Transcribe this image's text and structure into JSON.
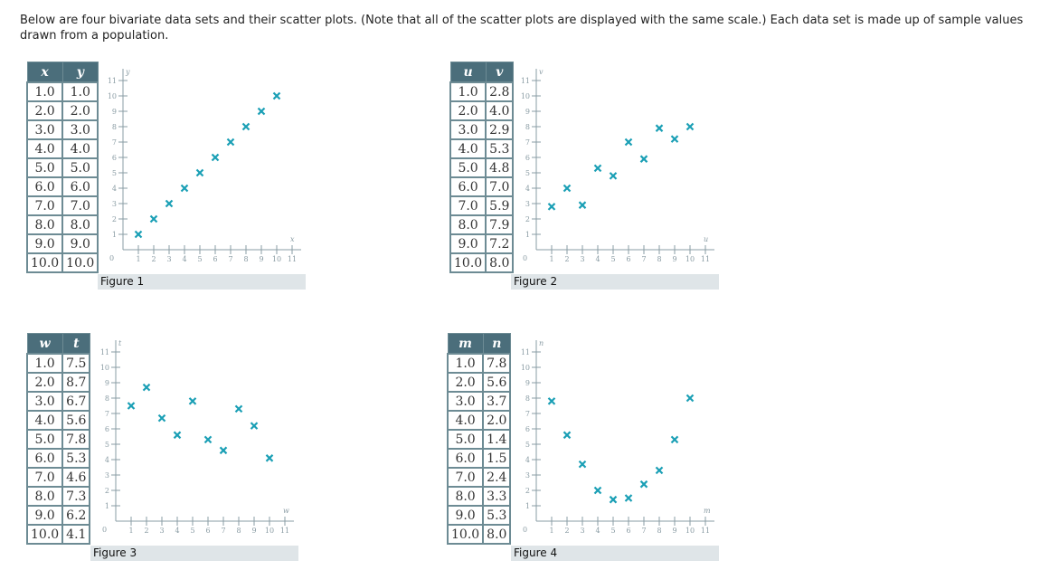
{
  "intro": "Below are four bivariate data sets and their scatter plots. (Note that all of the scatter plots are displayed with the same scale.) Each data set is made up of sample values drawn from a population.",
  "colors": {
    "marker": "#1a9fb5",
    "header": "#4b6e7b",
    "axis": "#8a9ca4",
    "caption_bg": "#dfe5e8"
  },
  "marker_icon": "x-cross",
  "chart_data": [
    {
      "type": "scatter",
      "caption": "Figure 1",
      "xlabel": "x",
      "ylabel": "y",
      "xlim": [
        0,
        11
      ],
      "ylim": [
        0,
        11
      ],
      "origin_label": "0",
      "x_ticks": [
        "1",
        "2",
        "3",
        "4",
        "5",
        "6",
        "7",
        "8",
        "9",
        "10",
        "11"
      ],
      "y_ticks": [
        "1",
        "2",
        "3",
        "4",
        "5",
        "6",
        "7",
        "8",
        "9",
        "10",
        "11"
      ],
      "x": [
        "1.0",
        "2.0",
        "3.0",
        "4.0",
        "5.0",
        "6.0",
        "7.0",
        "8.0",
        "9.0",
        "10.0"
      ],
      "y": [
        "1.0",
        "2.0",
        "3.0",
        "4.0",
        "5.0",
        "6.0",
        "7.0",
        "8.0",
        "9.0",
        "10.0"
      ]
    },
    {
      "type": "scatter",
      "caption": "Figure 2",
      "xlabel": "u",
      "ylabel": "v",
      "xlim": [
        0,
        11
      ],
      "ylim": [
        0,
        11
      ],
      "origin_label": "0",
      "x_ticks": [
        "1",
        "2",
        "3",
        "4",
        "5",
        "6",
        "7",
        "8",
        "9",
        "10",
        "11"
      ],
      "y_ticks": [
        "1",
        "2",
        "3",
        "4",
        "5",
        "6",
        "7",
        "8",
        "9",
        "10",
        "11"
      ],
      "x": [
        "1.0",
        "2.0",
        "3.0",
        "4.0",
        "5.0",
        "6.0",
        "7.0",
        "8.0",
        "9.0",
        "10.0"
      ],
      "y": [
        "2.8",
        "4.0",
        "2.9",
        "5.3",
        "4.8",
        "7.0",
        "5.9",
        "7.9",
        "7.2",
        "8.0"
      ]
    },
    {
      "type": "scatter",
      "caption": "Figure 3",
      "xlabel": "w",
      "ylabel": "t",
      "xlim": [
        0,
        11
      ],
      "ylim": [
        0,
        11
      ],
      "origin_label": "0",
      "x_ticks": [
        "1",
        "2",
        "3",
        "4",
        "5",
        "6",
        "7",
        "8",
        "9",
        "10",
        "11"
      ],
      "y_ticks": [
        "1",
        "2",
        "3",
        "4",
        "5",
        "6",
        "7",
        "8",
        "9",
        "10",
        "11"
      ],
      "x": [
        "1.0",
        "2.0",
        "3.0",
        "4.0",
        "5.0",
        "6.0",
        "7.0",
        "8.0",
        "9.0",
        "10.0"
      ],
      "y": [
        "7.5",
        "8.7",
        "6.7",
        "5.6",
        "7.8",
        "5.3",
        "4.6",
        "7.3",
        "6.2",
        "4.1"
      ]
    },
    {
      "type": "scatter",
      "caption": "Figure 4",
      "xlabel": "m",
      "ylabel": "n",
      "xlim": [
        0,
        11
      ],
      "ylim": [
        0,
        11
      ],
      "origin_label": "0",
      "x_ticks": [
        "1",
        "2",
        "3",
        "4",
        "5",
        "6",
        "7",
        "8",
        "9",
        "10",
        "11"
      ],
      "y_ticks": [
        "1",
        "2",
        "3",
        "4",
        "5",
        "6",
        "7",
        "8",
        "9",
        "10",
        "11"
      ],
      "x": [
        "1.0",
        "2.0",
        "3.0",
        "4.0",
        "5.0",
        "6.0",
        "7.0",
        "8.0",
        "9.0",
        "10.0"
      ],
      "y": [
        "7.8",
        "5.6",
        "3.7",
        "2.0",
        "1.4",
        "1.5",
        "2.4",
        "3.3",
        "5.3",
        "8.0"
      ]
    }
  ]
}
